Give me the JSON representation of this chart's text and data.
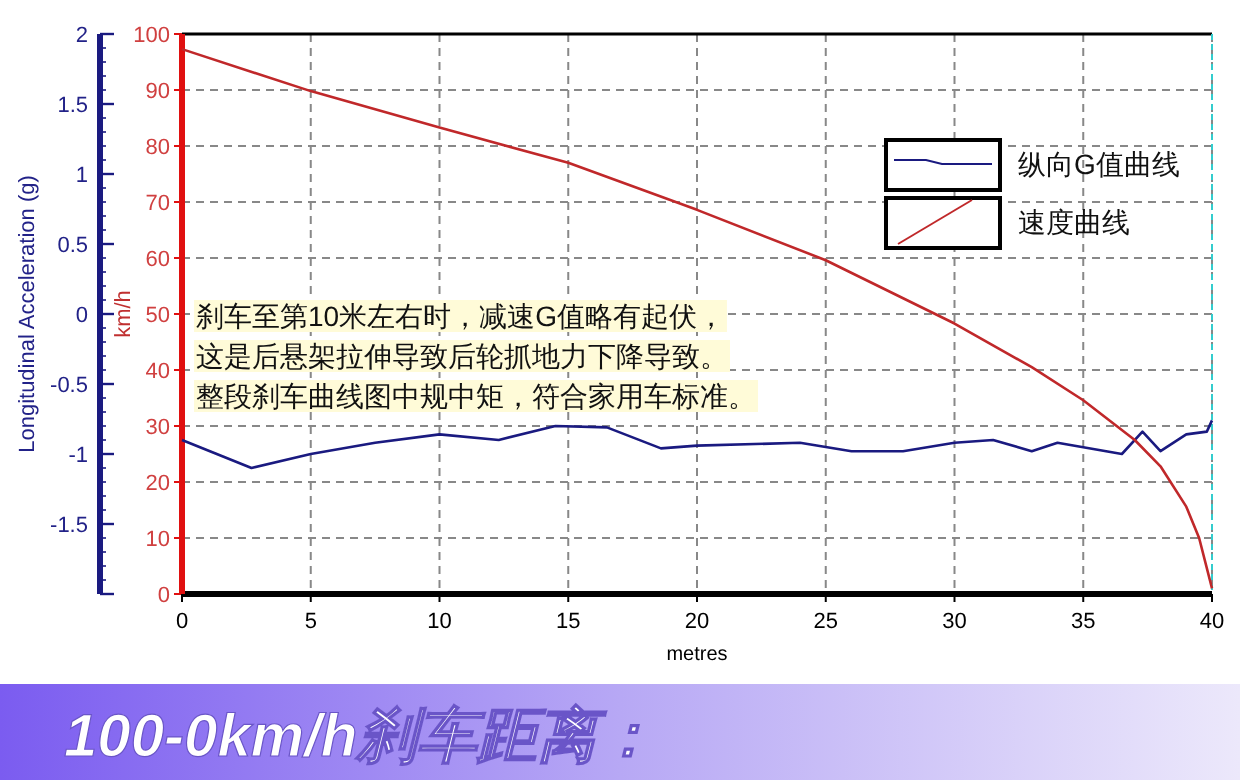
{
  "chart_data": {
    "type": "line",
    "title": "100-0km/h刹车距离：",
    "xlabel": "metres",
    "ylabel": "km/h",
    "y2label": "Longitudinal Acceleration (g)",
    "annotations": [
      "刹车至第10米左右时，减速G值略有起伏，",
      "这是后悬架拉伸导致后轮抓地力下降导致。",
      "整段刹车曲线图中规中矩，符合家用车标准。"
    ],
    "series": [
      {
        "name": "纵向G值曲线",
        "color": "#1a1a80",
        "axis": "y2",
        "x": [
          0,
          2.7,
          5,
          7.5,
          10,
          12.3,
          14.5,
          16.5,
          18.6,
          20,
          24,
          26,
          28,
          30,
          31.5,
          33,
          34,
          36.5,
          37.3,
          38,
          39,
          39.8,
          40
        ],
        "values": [
          -0.9,
          -1.1,
          -1.0,
          -0.92,
          -0.86,
          -0.9,
          -0.8,
          -0.81,
          -0.96,
          -0.94,
          -0.92,
          -0.98,
          -0.98,
          -0.92,
          -0.9,
          -0.98,
          -0.92,
          -1.0,
          -0.84,
          -0.98,
          -0.86,
          -0.84,
          -0.76
        ]
      },
      {
        "name": "速度曲线",
        "color": "#c0282a",
        "x": [
          0,
          5,
          10,
          15,
          20,
          25,
          30,
          33,
          35,
          37,
          38,
          39,
          39.5,
          40
        ],
        "values": [
          97.3,
          89.8,
          83.3,
          77,
          68.6,
          59.6,
          48.3,
          40.5,
          34.6,
          27.5,
          22.8,
          15.6,
          10,
          1
        ]
      }
    ],
    "xlim": [
      0,
      40
    ],
    "xticks": [
      0,
      5,
      10,
      15,
      20,
      25,
      30,
      35,
      40
    ],
    "ylim": [
      0,
      100
    ],
    "yticks": [
      0,
      10,
      20,
      30,
      40,
      50,
      60,
      70,
      80,
      90,
      100
    ],
    "y2lim": [
      -2,
      2
    ],
    "y2ticks": [
      {
        "value": -2,
        "label": null
      },
      -1.5,
      -1,
      -0.5,
      0,
      0.5,
      1,
      1.5,
      2
    ],
    "grid": true,
    "legend": "top right"
  }
}
